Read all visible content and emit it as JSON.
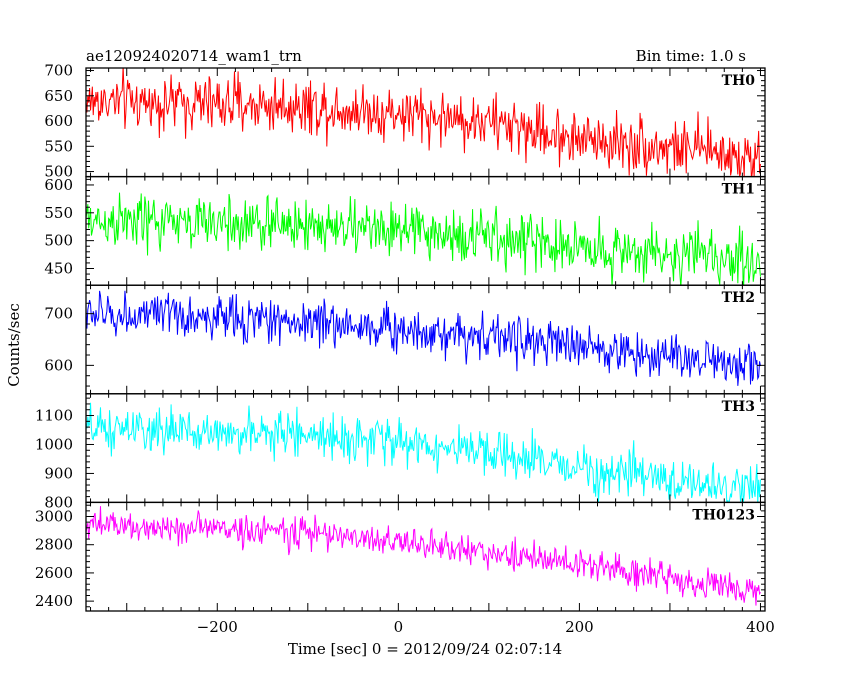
{
  "header": {
    "title": "ae120924020714_wam1_trn",
    "bin_time": "Bin time: 1.0 s"
  },
  "chart_data": {
    "type": "line",
    "xlabel": "Time [sec] 0 = 2012/09/24 02:07:14",
    "ylabel": "Counts/sec",
    "xlim": [
      -345,
      405
    ],
    "x_range_data": [
      -345,
      400
    ],
    "x_step": 1.0,
    "x_ticks": [
      -200,
      0,
      200,
      400
    ],
    "x_tick_labels": [
      "−200",
      "0",
      "200",
      "400"
    ],
    "panels": [
      {
        "name": "TH0",
        "color": "#ff0000",
        "ylim": [
          490,
          705
        ],
        "yticks": [
          500,
          550,
          600,
          650,
          700
        ],
        "ytick_labels": [
          "500",
          "550",
          "600",
          "650",
          "700"
        ],
        "trend": [
          [
            -345,
            640
          ],
          [
            -100,
            630
          ],
          [
            0,
            615
          ],
          [
            100,
            598
          ],
          [
            200,
            565
          ],
          [
            300,
            548
          ],
          [
            400,
            530
          ]
        ],
        "noise_amplitude": 28
      },
      {
        "name": "TH1",
        "color": "#00ff00",
        "ylim": [
          420,
          615
        ],
        "yticks": [
          450,
          500,
          550,
          600
        ],
        "ytick_labels": [
          "450",
          "500",
          "550",
          "600"
        ],
        "trend": [
          [
            -345,
            535
          ],
          [
            -100,
            528
          ],
          [
            0,
            518
          ],
          [
            100,
            505
          ],
          [
            200,
            488
          ],
          [
            300,
            475
          ],
          [
            400,
            465
          ]
        ],
        "noise_amplitude": 25
      },
      {
        "name": "TH2",
        "color": "#0000ff",
        "ylim": [
          545,
          755
        ],
        "yticks": [
          600,
          700
        ],
        "ytick_labels": [
          "600",
          "700"
        ],
        "trend": [
          [
            -345,
            700
          ],
          [
            -100,
            685
          ],
          [
            0,
            670
          ],
          [
            100,
            658
          ],
          [
            200,
            635
          ],
          [
            300,
            618
          ],
          [
            400,
            602
          ]
        ],
        "noise_amplitude": 22
      },
      {
        "name": "TH3",
        "color": "#00ffff",
        "ylim": [
          800,
          1175
        ],
        "yticks": [
          800,
          900,
          1000,
          1100
        ],
        "ytick_labels": [
          "800",
          "900",
          "1000",
          "1100"
        ],
        "trend": [
          [
            -345,
            1050
          ],
          [
            -100,
            1035
          ],
          [
            0,
            1010
          ],
          [
            100,
            965
          ],
          [
            200,
            920
          ],
          [
            300,
            875
          ],
          [
            400,
            845
          ]
        ],
        "noise_amplitude": 38
      },
      {
        "name": "TH0123",
        "color": "#ff00ff",
        "ylim": [
          2330,
          3100
        ],
        "yticks": [
          2400,
          2600,
          2800,
          3000
        ],
        "ytick_labels": [
          "2400",
          "2600",
          "2800",
          "3000"
        ],
        "trend": [
          [
            -345,
            2935
          ],
          [
            -200,
            2915
          ],
          [
            -100,
            2885
          ],
          [
            0,
            2820
          ],
          [
            100,
            2745
          ],
          [
            200,
            2660
          ],
          [
            300,
            2570
          ],
          [
            400,
            2450
          ]
        ],
        "noise_amplitude": 55
      }
    ]
  }
}
